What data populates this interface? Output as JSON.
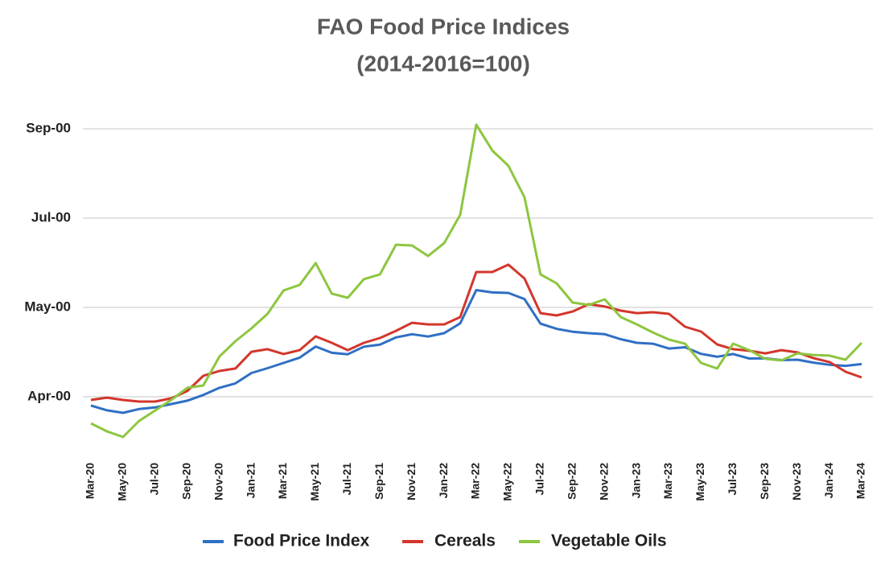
{
  "chart_data": {
    "type": "line",
    "title": "FAO Food Price Indices",
    "subtitle": "(2014-2016=100)",
    "categories": [
      "Mar-20",
      null,
      "May-20",
      null,
      "Jul-20",
      null,
      "Sep-20",
      null,
      "Nov-20",
      null,
      "Jan-21",
      null,
      "Mar-21",
      null,
      "May-21",
      null,
      "Jul-21",
      null,
      "Sep-21",
      null,
      "Nov-21",
      null,
      "Jan-22",
      null,
      "Mar-22",
      null,
      "May-22",
      null,
      "Jul-22",
      null,
      "Sep-22",
      null,
      "Nov-22",
      null,
      "Jan-23",
      null,
      "Mar-23",
      null,
      "May-23",
      null,
      "Jul-23",
      null,
      "Sep-23",
      null,
      "Nov-23",
      null,
      "Jan-24",
      null,
      "Mar-24"
    ],
    "series": [
      {
        "name": "Food Price Index",
        "color": "#2f6fc4",
        "values": [
          95.1,
          92.4,
          91.0,
          93.1,
          94.0,
          95.9,
          97.8,
          101.0,
          105.0,
          107.5,
          113.3,
          116.0,
          118.9,
          121.9,
          128.1,
          124.6,
          123.8,
          128.0,
          129.2,
          133.2,
          135.0,
          133.7,
          135.6,
          141.1,
          159.7,
          158.4,
          158.1,
          154.7,
          140.9,
          138.0,
          136.4,
          135.6,
          135.0,
          132.2,
          130.2,
          129.7,
          127.0,
          127.7,
          124.0,
          122.4,
          123.9,
          121.4,
          121.5,
          120.5,
          120.7,
          119.1,
          117.9,
          117.3,
          118.3
        ]
      },
      {
        "name": "Cereals",
        "color": "#d3362c",
        "values": [
          98.2,
          99.5,
          98.2,
          97.3,
          97.3,
          99.1,
          103.2,
          111.7,
          114.4,
          115.8,
          125.2,
          126.6,
          123.9,
          126.1,
          133.8,
          130.2,
          126.1,
          130.2,
          132.9,
          136.9,
          141.4,
          140.5,
          140.5,
          144.6,
          169.8,
          169.8,
          173.9,
          166.2,
          146.8,
          145.5,
          147.7,
          151.8,
          150.5,
          148.2,
          146.8,
          147.3,
          146.4,
          139.2,
          136.5,
          129.3,
          126.6,
          125.7,
          124.3,
          126.1,
          124.8,
          121.6,
          119.4,
          114.0,
          110.8
        ]
      },
      {
        "name": "Vegetable Oils",
        "color": "#8dc63f",
        "values": [
          85.1,
          80.6,
          77.5,
          86.5,
          92.3,
          98.2,
          105.0,
          106.3,
          122.5,
          131.1,
          138.3,
          146.4,
          159.5,
          162.6,
          174.8,
          157.7,
          155.4,
          165.8,
          168.5,
          185.1,
          184.7,
          178.8,
          186.0,
          201.8,
          252.3,
          237.8,
          229.3,
          211.7,
          168.5,
          163.5,
          152.7,
          151.4,
          154.5,
          144.6,
          140.5,
          136.0,
          132.0,
          129.7,
          118.9,
          115.8,
          129.7,
          126.1,
          121.2,
          120.3,
          124.3,
          123.4,
          123.0,
          120.7,
          130.2
        ]
      }
    ],
    "ylim": [
      70,
      260
    ],
    "yticks": [
      {
        "value": 100,
        "label": "Apr-00"
      },
      {
        "value": 150,
        "label": "May-00"
      },
      {
        "value": 200,
        "label": "Jul-00"
      },
      {
        "value": 250,
        "label": "Sep-00"
      }
    ],
    "grid": true,
    "legend": "bottom"
  }
}
